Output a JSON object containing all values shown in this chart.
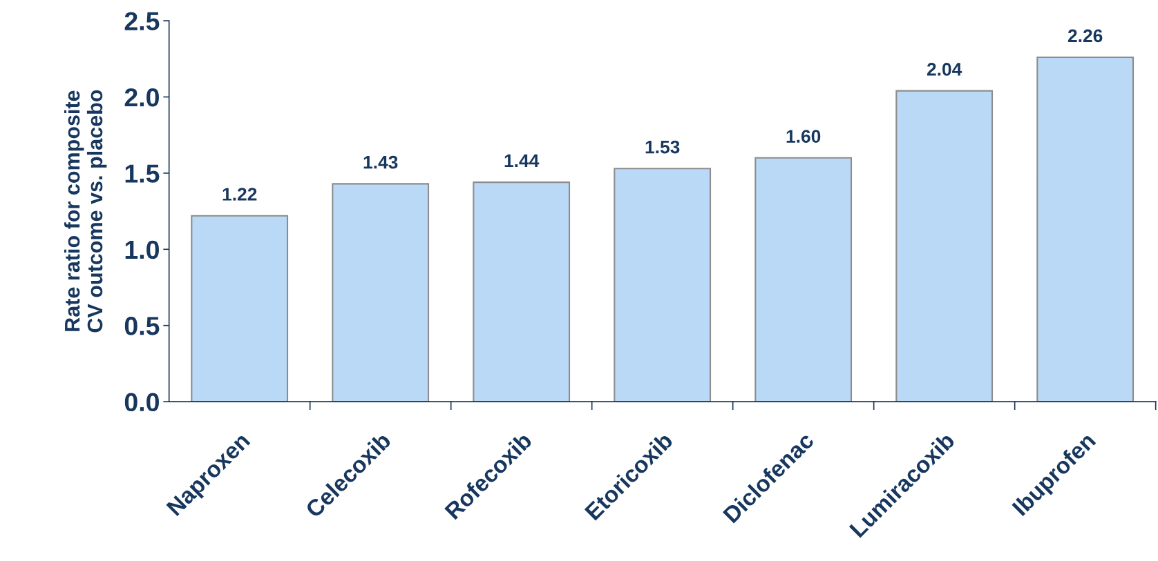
{
  "chart_data": {
    "type": "bar",
    "ylabel": "Rate ratio for composite\nCV outcome vs. placebo",
    "categories": [
      "Naproxen",
      "Celecoxib",
      "Rofecoxib",
      "Etoricoxib",
      "Diclofenac",
      "Lumiracoxib",
      "Ibuprofen"
    ],
    "values": [
      1.22,
      1.43,
      1.44,
      1.53,
      1.6,
      2.04,
      2.26
    ],
    "value_labels": [
      "1.22",
      "1.43",
      "1.44",
      "1.53",
      "1.60",
      "2.04",
      "2.26"
    ],
    "color": "#b9d9f6",
    "ylim": [
      0,
      2.5
    ],
    "yticks": [
      {
        "value": 0,
        "label": "0.0"
      },
      {
        "value": 0.5,
        "label": "0.5"
      },
      {
        "value": 1,
        "label": "1.0"
      },
      {
        "value": 1.5,
        "label": "1.5"
      },
      {
        "value": 2,
        "label": "2.0"
      },
      {
        "value": 2.5,
        "label": "2.5"
      }
    ],
    "grid": false,
    "legend": false
  }
}
